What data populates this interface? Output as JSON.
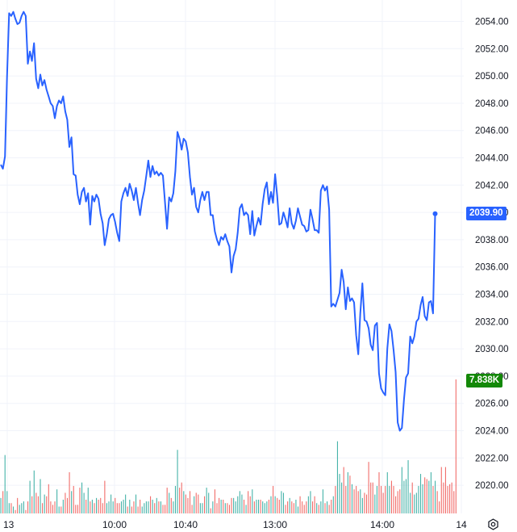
{
  "chart_data": {
    "type": "line",
    "x_ticks": [
      "13",
      "10:00",
      "10:40",
      "13:00",
      "14:00",
      "14"
    ],
    "y_ticks": [
      "2054.00",
      "2052.00",
      "2050.00",
      "2048.00",
      "2046.00",
      "2044.00",
      "2042.00",
      "2040.00",
      "2038.00",
      "2036.00",
      "2034.00",
      "2032.00",
      "2030.00",
      "2028.00",
      "2026.00",
      "2024.00",
      "2022.00",
      "2020.00"
    ],
    "ylim": [
      2018.2,
      2055.6
    ],
    "last_price": "2039.90",
    "last_volume": "7.838K",
    "colors": {
      "price_line": "#2962ff",
      "up_volume": "#26a69a",
      "down_volume": "#ef5350",
      "price_badge": "#2962ff",
      "volume_badge": "#138808"
    },
    "series": [
      {
        "values": [
          2043.5,
          2043.2,
          2044.1,
          2049.9,
          2054.6,
          2054.4,
          2054.7,
          2054.2,
          2053.8,
          2053.9,
          2054.4,
          2054.7,
          2054.4,
          2050.9,
          2051.8,
          2051.1,
          2052.4,
          2049.8,
          2049.1,
          2050.1,
          2049.3,
          2049.7,
          2049.0,
          2048.5,
          2048.0,
          2047.8,
          2046.9,
          2047.8,
          2048.2,
          2048.0,
          2048.5,
          2047.4,
          2046.8,
          2044.8,
          2045.5,
          2042.8,
          2042.7,
          2041.3,
          2040.6,
          2041.5,
          2041.8,
          2040.8,
          2041.4,
          2039.1,
          2041.2,
          2040.8,
          2041.3,
          2041.0,
          2039.9,
          2039.2,
          2037.6,
          2038.4,
          2039.5,
          2039.8,
          2039.9,
          2039.3,
          2038.5,
          2037.9,
          2040.8,
          2041.4,
          2041.8,
          2041.2,
          2042.1,
          2041.6,
          2040.9,
          2041.8,
          2040.7,
          2039.8,
          2040.9,
          2041.6,
          2042.7,
          2043.8,
          2042.6,
          2043.4,
          2042.8,
          2043.0,
          2042.7,
          2042.9,
          2042.7,
          2040.8,
          2038.8,
          2041.1,
          2040.8,
          2041.4,
          2043.0,
          2045.9,
          2045.4,
          2044.6,
          2045.4,
          2045.2,
          2044.4,
          2042.6,
          2041.3,
          2041.8,
          2040.4,
          2040.0,
          2040.9,
          2041.5,
          2040.9,
          2041.5,
          2041.5,
          2039.8,
          2039.8,
          2038.6,
          2038.0,
          2037.6,
          2038.2,
          2038.0,
          2038.4,
          2037.9,
          2037.5,
          2035.6,
          2036.8,
          2037.3,
          2038.5,
          2040.3,
          2040.6,
          2039.8,
          2040.0,
          2039.8,
          2038.4,
          2040.1,
          2038.3,
          2039.0,
          2039.6,
          2039.1,
          2040.6,
          2041.7,
          2042.2,
          2040.6,
          2041.5,
          2040.7,
          2042.8,
          2041.2,
          2039.1,
          2039.2,
          2040.0,
          2039.5,
          2038.9,
          2040.3,
          2039.2,
          2038.8,
          2039.4,
          2040.3,
          2039.7,
          2039.1,
          2039.0,
          2038.6,
          2038.7,
          2040.2,
          2039.5,
          2038.7,
          2038.7,
          2038.5,
          2041.6,
          2042.0,
          2041.6,
          2041.9,
          2040.2,
          2033.1,
          2033.3,
          2033.1,
          2033.6,
          2034.1,
          2035.8,
          2034.9,
          2032.9,
          2034.5,
          2033.5,
          2033.7,
          2033.4,
          2031.0,
          2029.6,
          2032.6,
          2034.8,
          2032.1,
          2032.0,
          2031.5,
          2030.3,
          2029.9,
          2031.7,
          2031.9,
          2028.2,
          2027.1,
          2026.8,
          2026.6,
          2030.0,
          2031.8,
          2031.3,
          2029.9,
          2028.3,
          2024.6,
          2024.0,
          2024.2,
          2026.3,
          2027.9,
          2028.2,
          2030.9,
          2030.4,
          2030.9,
          2032.0,
          2032.2,
          2033.2,
          2033.8,
          2032.4,
          2032.1,
          2033.4,
          2033.5,
          2032.6,
          2039.9
        ]
      }
    ],
    "volume_values": [
      0.9,
      1.3,
      3.4,
      1.3,
      0.6,
      0.6,
      0.4,
      0.2,
      0.9,
      0.5,
      0.6,
      0.7,
      0.2,
      0.7,
      1.9,
      1.0,
      2.5,
      1.2,
      1.0,
      2.0,
      0.6,
      1.1,
      1.0,
      1.7,
      0.7,
      0.5,
      0.7,
      1.4,
      0.4,
      0.4,
      0.8,
      1.2,
      0.9,
      2.4,
      1.3,
      1.6,
      0.5,
      0.5,
      1.5,
      1.8,
      1.2,
      0.8,
      1.5,
      0.7,
      0.8,
      0.6,
      0.9,
      0.8,
      0.9,
      0.6,
      1.9,
      0.6,
      0.7,
      1.1,
      0.7,
      0.9,
      0.6,
      0.6,
      0.7,
      0.8,
      1.1,
      0.4,
      0.8,
      0.4,
      0.7,
      1.1,
      0.4,
      0.8,
      0.4,
      0.6,
      0.7,
      0.7,
      1.0,
      0.8,
      0.6,
      0.9,
      0.7,
      0.7,
      0.5,
      0.5,
      1.5,
      1.2,
      0.9,
      0.7,
      1.6,
      3.7,
      1.5,
      1.8,
      1.3,
      1.1,
      0.9,
      1.3,
      0.5,
      1.0,
      1.2,
      1.1,
      0.6,
      0.6,
      1.0,
      1.5,
      1.2,
      0.3,
      0.7,
      1.4,
      0.6,
      0.9,
      0.8,
      0.8,
      0.6,
      0.6,
      0.5,
      0.9,
      0.9,
      0.7,
      1.0,
      1.3,
      1.1,
      0.8,
      0.5,
      1.3,
      1.0,
      1.4,
      0.7,
      0.8,
      0.8,
      0.8,
      0.7,
      0.6,
      0.7,
      0.8,
      1.0,
      1.6,
      1.0,
      0.9,
      0.8,
      1.3,
      1.2,
      0.5,
      0.7,
      0.9,
      0.7,
      0.6,
      0.8,
      0.4,
      1.0,
      0.7,
      0.5,
      0.7,
      1.0,
      1.3,
      0.7,
      1.0,
      0.6,
      0.5,
      0.7,
      1.4,
      0.6,
      0.7,
      0.5,
      0.8,
      1.0,
      1.6,
      4.2,
      2.3,
      1.8,
      2.7,
      1.6,
      2.4,
      2.2,
      1.7,
      1.4,
      1.6,
      1.3,
      1.4,
      0.9,
      1.2,
      1.1,
      3.0,
      1.8,
      1.8,
      1.1,
      1.6,
      2.4,
      1.6,
      1.2,
      1.6,
      2.4,
      1.6,
      1.9,
      1.6,
      1.0,
      1.3,
      1.4,
      2.7,
      1.9,
      2.0,
      3.1,
      1.2,
      1.8,
      1.1,
      1.2,
      1.6,
      2.3,
      1.7,
      2.1,
      2.0,
      1.9,
      2.4,
      1.6,
      1.9,
      1.3,
      0.7,
      2.7,
      1.8,
      2.7,
      1.6,
      1.7,
      1.8,
      1.3,
      7.8
    ]
  },
  "icons": {
    "settings": "settings-icon"
  }
}
